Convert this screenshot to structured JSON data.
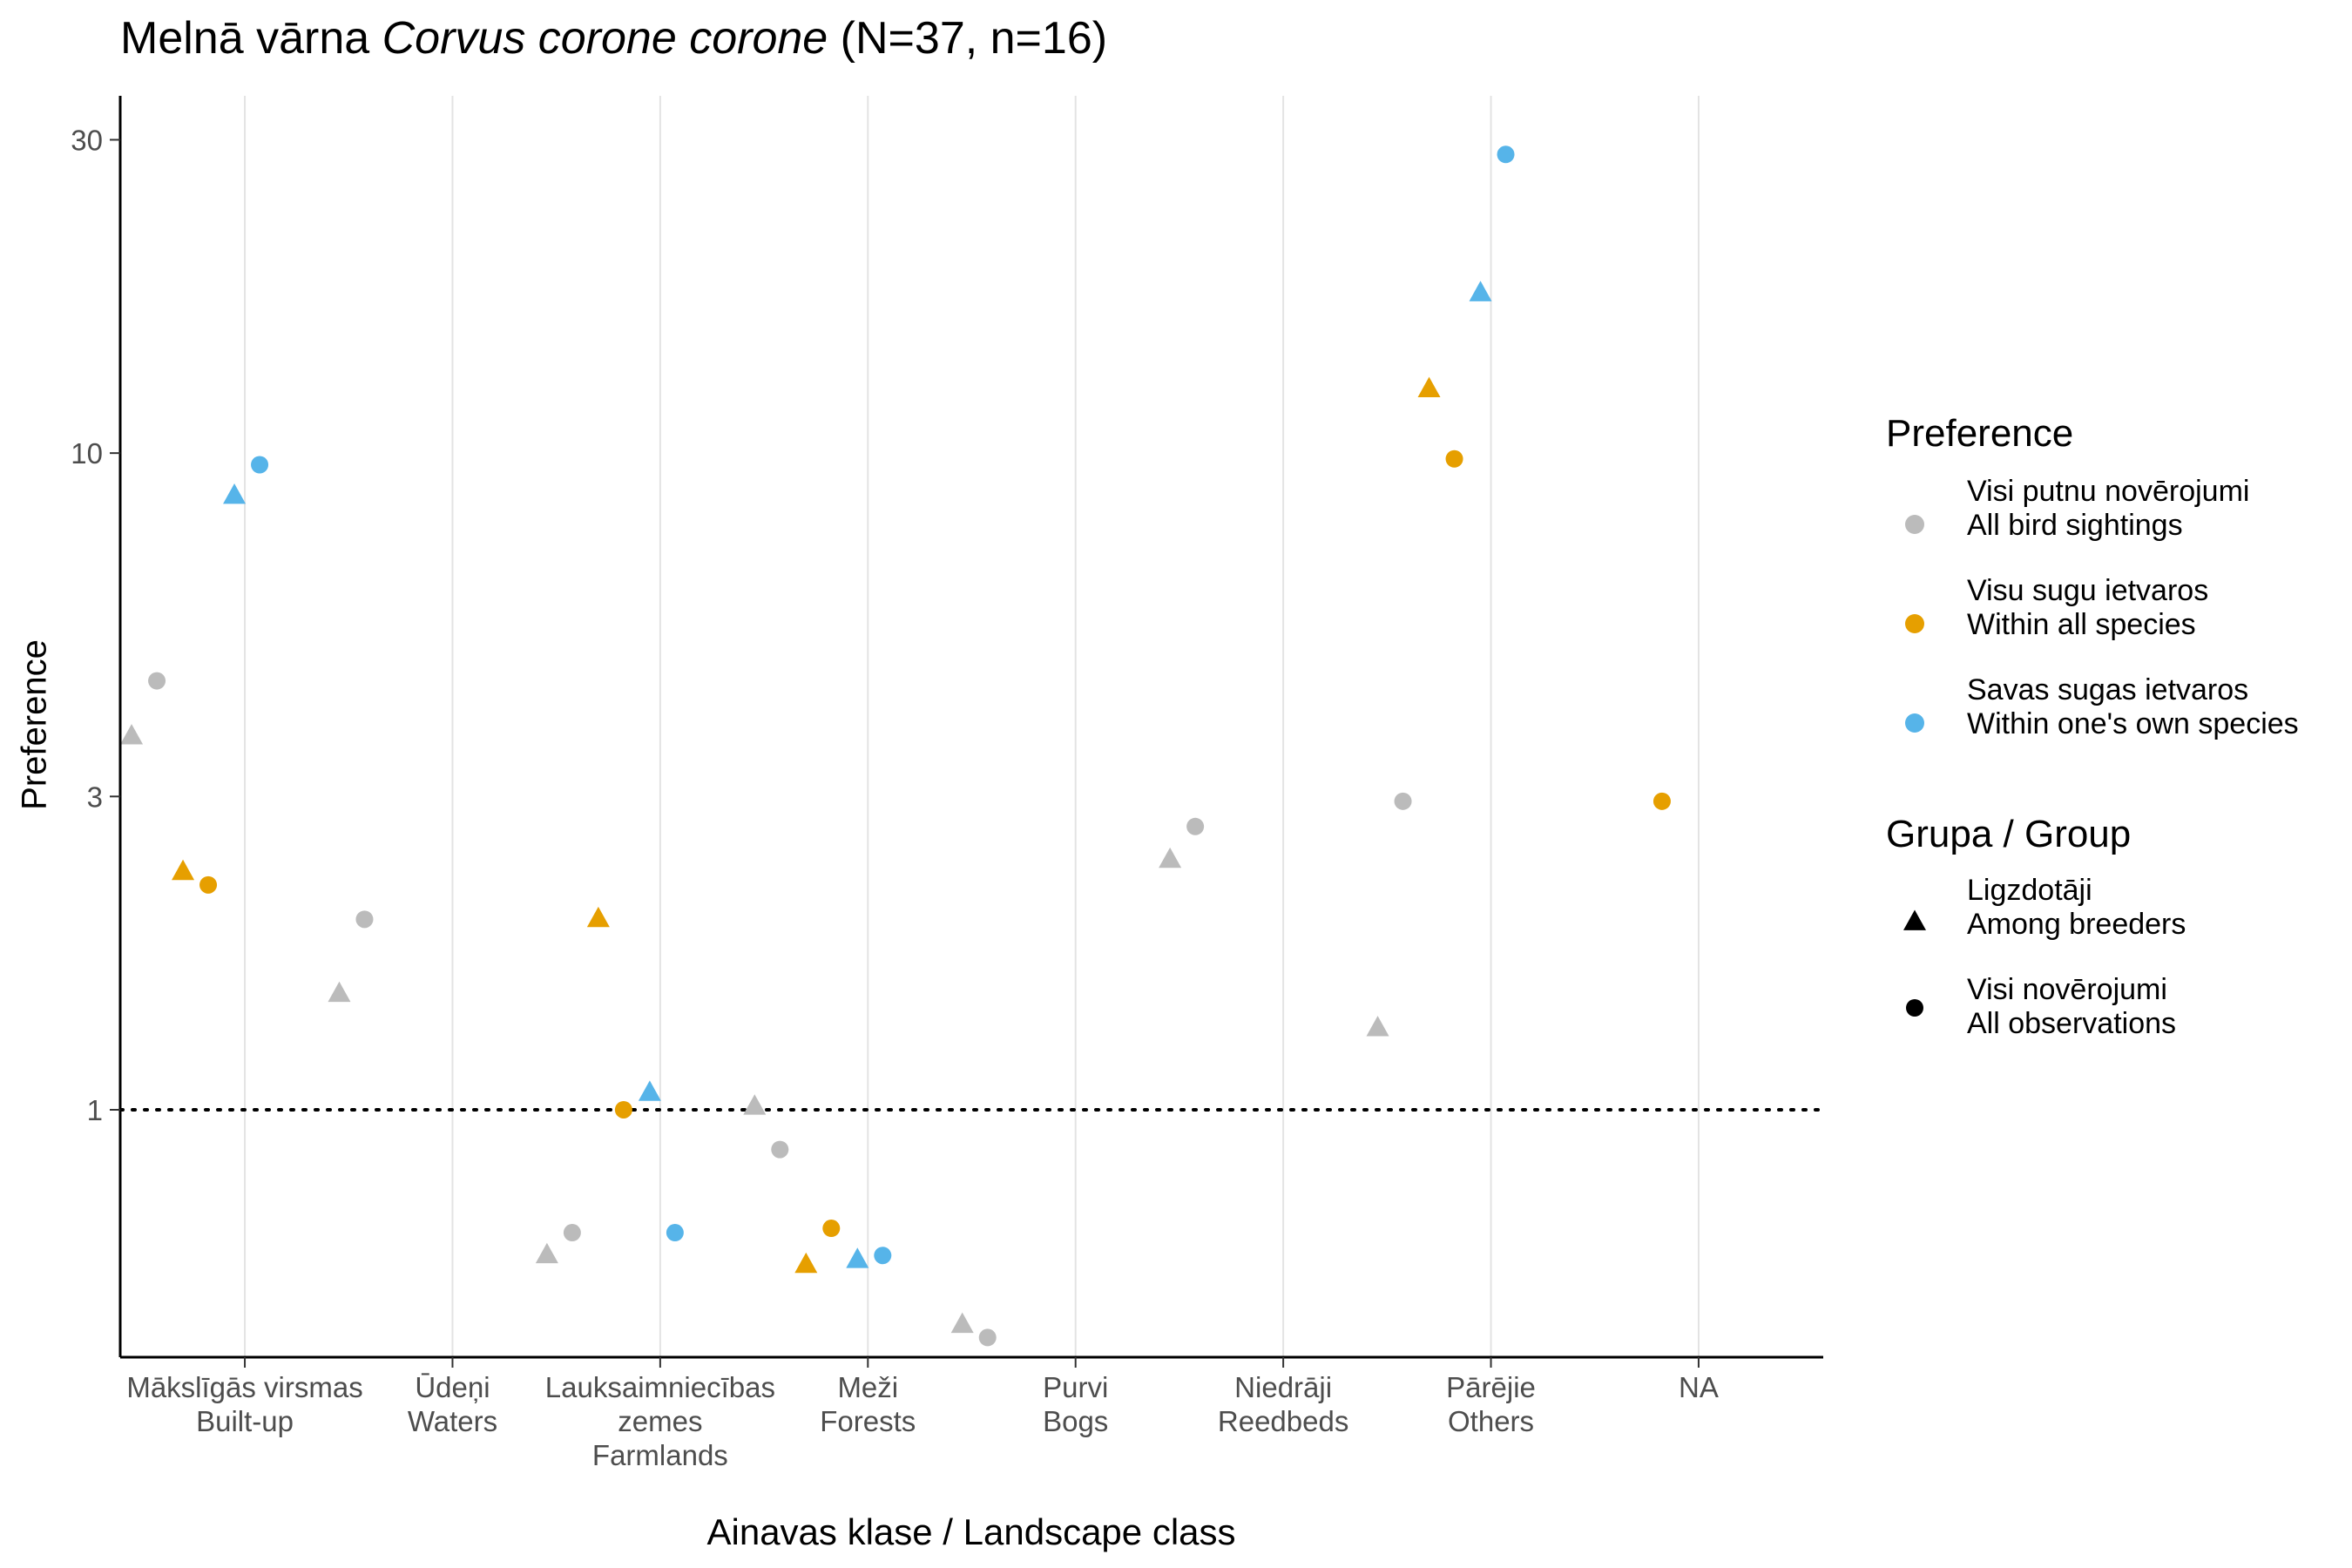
{
  "title": {
    "prefix": "Melnā vārna ",
    "species": "Corvus corone corone",
    "suffix": " (N=37, n=16)"
  },
  "chart_data": {
    "type": "scatter",
    "title": "Melnā vārna Corvus corone corone (N=37, n=16)",
    "xlabel": "Ainavas klase / Landscape class",
    "ylabel": "Preference",
    "y_scale": "log",
    "ylim": [
      0.42,
      35
    ],
    "y_ticks": [
      1,
      3,
      10,
      30
    ],
    "y_tick_labels": [
      "1",
      "3",
      "10",
      "30"
    ],
    "reference_line": 1,
    "grid": "vertical major",
    "legend_placement": "right",
    "categories": [
      [
        "Mākslīgās virsmas",
        "Built-up"
      ],
      [
        "Ūdeņi",
        "Waters"
      ],
      [
        "Lauksaimniecības",
        "zemes",
        "Farmlands"
      ],
      [
        "Meži",
        "Forests"
      ],
      [
        "Purvi",
        "Bogs"
      ],
      [
        "Niedrāji",
        "Reedbeds"
      ],
      [
        "Pārējie",
        "Others"
      ],
      [
        "NA"
      ]
    ],
    "series": [
      {
        "name": "Visi putnu novērojumi / All bird sightings",
        "color": "#BBBBBB",
        "points": [
          {
            "category": 0,
            "group": "breeders",
            "value": 3.7
          },
          {
            "category": 0,
            "group": "all",
            "value": 4.5
          },
          {
            "category": 1,
            "group": "breeders",
            "value": 1.5
          },
          {
            "category": 1,
            "group": "all",
            "value": 1.95
          },
          {
            "category": 2,
            "group": "breeders",
            "value": 0.6
          },
          {
            "category": 2,
            "group": "all",
            "value": 0.65
          },
          {
            "category": 3,
            "group": "breeders",
            "value": 1.01
          },
          {
            "category": 3,
            "group": "all",
            "value": 0.87
          },
          {
            "category": 4,
            "group": "breeders",
            "value": 0.47
          },
          {
            "category": 4,
            "group": "all",
            "value": 0.45
          },
          {
            "category": 5,
            "group": "breeders",
            "value": 2.4
          },
          {
            "category": 5,
            "group": "all",
            "value": 2.7
          },
          {
            "category": 6,
            "group": "breeders",
            "value": 1.33
          },
          {
            "category": 6,
            "group": "all",
            "value": 2.95
          }
        ]
      },
      {
        "name": "Visu sugu ietvaros / Within all species",
        "color": "#E69F00",
        "points": [
          {
            "category": 0,
            "group": "breeders",
            "value": 2.3
          },
          {
            "category": 0,
            "group": "all",
            "value": 2.2
          },
          {
            "category": 2,
            "group": "breeders",
            "value": 1.95
          },
          {
            "category": 2,
            "group": "all",
            "value": 1.0
          },
          {
            "category": 3,
            "group": "breeders",
            "value": 0.58
          },
          {
            "category": 3,
            "group": "all",
            "value": 0.66
          },
          {
            "category": 6,
            "group": "breeders",
            "value": 12.5
          },
          {
            "category": 6,
            "group": "all",
            "value": 9.8
          },
          {
            "category": 7,
            "group": "all",
            "value": 2.95
          }
        ]
      },
      {
        "name": "Savas sugas ietvaros / Within one's own species",
        "color": "#56B4E9",
        "points": [
          {
            "category": 0,
            "group": "breeders",
            "value": 8.6
          },
          {
            "category": 0,
            "group": "all",
            "value": 9.6
          },
          {
            "category": 2,
            "group": "breeders",
            "value": 1.06
          },
          {
            "category": 2,
            "group": "all",
            "value": 0.65
          },
          {
            "category": 3,
            "group": "breeders",
            "value": 0.59
          },
          {
            "category": 3,
            "group": "all",
            "value": 0.6
          },
          {
            "category": 6,
            "group": "breeders",
            "value": 17.5
          },
          {
            "category": 6,
            "group": "all",
            "value": 28.5
          }
        ]
      }
    ],
    "legends": {
      "preference": {
        "title": "Preference",
        "items": [
          {
            "lines": [
              "Visi putnu novērojumi",
              "All bird sightings"
            ],
            "color": "#BBBBBB"
          },
          {
            "lines": [
              "Visu sugu ietvaros",
              "Within all species"
            ],
            "color": "#E69F00"
          },
          {
            "lines": [
              "Savas sugas ietvaros",
              "Within one's own species"
            ],
            "color": "#56B4E9"
          }
        ]
      },
      "group": {
        "title": "Grupa / Group",
        "items": [
          {
            "lines": [
              "Ligzdotāji",
              "Among breeders"
            ],
            "shape": "triangle"
          },
          {
            "lines": [
              "Visi novērojumi",
              "All observations"
            ],
            "shape": "circle"
          }
        ]
      }
    }
  }
}
